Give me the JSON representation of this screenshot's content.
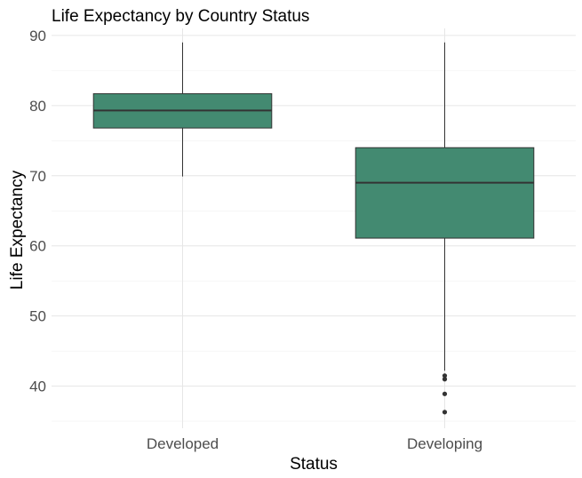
{
  "chart_data": {
    "type": "boxplot",
    "title": "Life Expectancy by Country Status",
    "xlabel": "Status",
    "ylabel": "Life Expectancy",
    "ylim": [
      34,
      91
    ],
    "yticks": [
      40,
      50,
      60,
      70,
      80,
      90
    ],
    "grid": true,
    "legend": "none",
    "fill_color": "#438a71",
    "outline_color": "#333333",
    "categories": [
      "Developed",
      "Developing"
    ],
    "boxes": [
      {
        "category": "Developed",
        "whisker_low": 69.9,
        "q1": 76.8,
        "median": 79.3,
        "q3": 81.7,
        "whisker_high": 89.0,
        "outliers": []
      },
      {
        "category": "Developing",
        "whisker_low": 42.2,
        "q1": 61.1,
        "median": 69.0,
        "q3": 74.0,
        "whisker_high": 89.0,
        "outliers": [
          41.5,
          41.0,
          38.9,
          36.3
        ]
      }
    ]
  }
}
